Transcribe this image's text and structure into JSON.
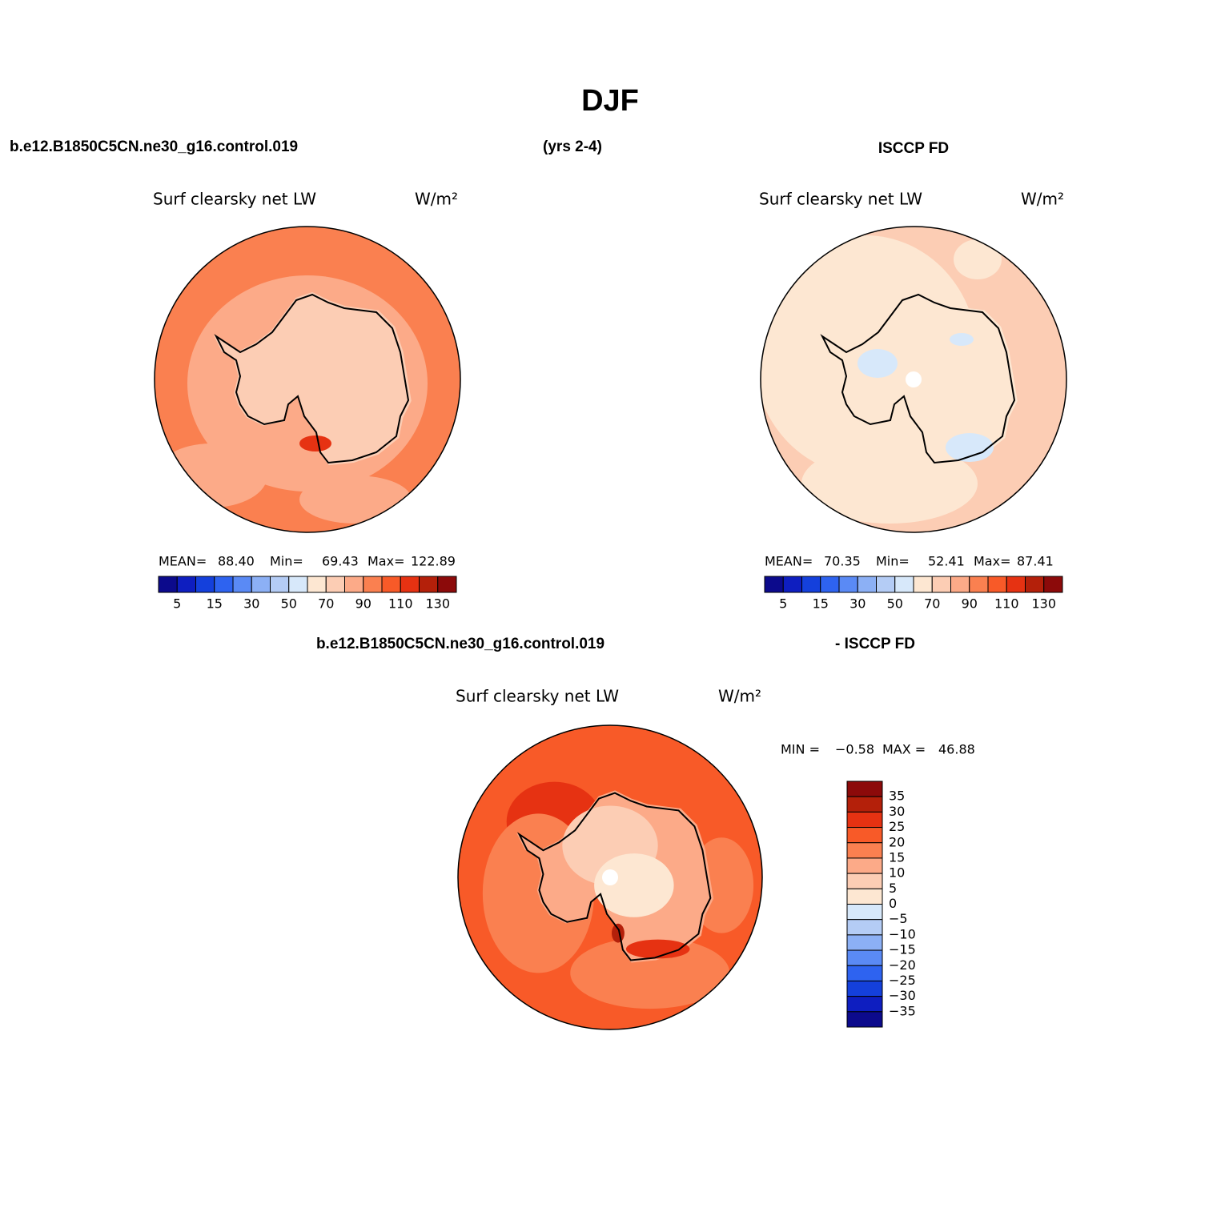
{
  "header": {
    "title": "DJF",
    "case": "b.e12.B1850C5CN.ne30_g16.control.019",
    "years": "(yrs 2-4)",
    "obs": "ISCCP FD"
  },
  "panels": [
    {
      "title": "Surf clearsky net LW",
      "units": "W/m²",
      "stats": [
        [
          "MEAN=",
          "88.40"
        ],
        [
          "Min=",
          "69.43"
        ],
        [
          "Max=",
          "122.89"
        ]
      ],
      "colorbar": [
        "5",
        "15",
        "30",
        "50",
        "70",
        "90",
        "110",
        "130"
      ]
    },
    {
      "title": "Surf clearsky net LW",
      "units": "W/m²",
      "stats": [
        [
          "MEAN=",
          "70.35"
        ],
        [
          "Min=",
          "52.41"
        ],
        [
          "Max=",
          "87.41"
        ]
      ],
      "colorbar": [
        "5",
        "15",
        "30",
        "50",
        "70",
        "90",
        "110",
        "130"
      ]
    }
  ],
  "diff": {
    "case": "b.e12.B1850C5CN.ne30_g16.control.019",
    "obs": "- ISCCP FD",
    "title": "Surf clearsky net LW",
    "units": "W/m²",
    "stats": [
      [
        "MIN =",
        "−0.58"
      ],
      [
        "MAX =",
        "46.88"
      ]
    ],
    "colorbar": [
      "35",
      "30",
      "25",
      "20",
      "15",
      "10",
      "5",
      "0",
      "−5",
      "−10",
      "−15",
      "−20",
      "−25",
      "−30",
      "−35"
    ]
  }
}
